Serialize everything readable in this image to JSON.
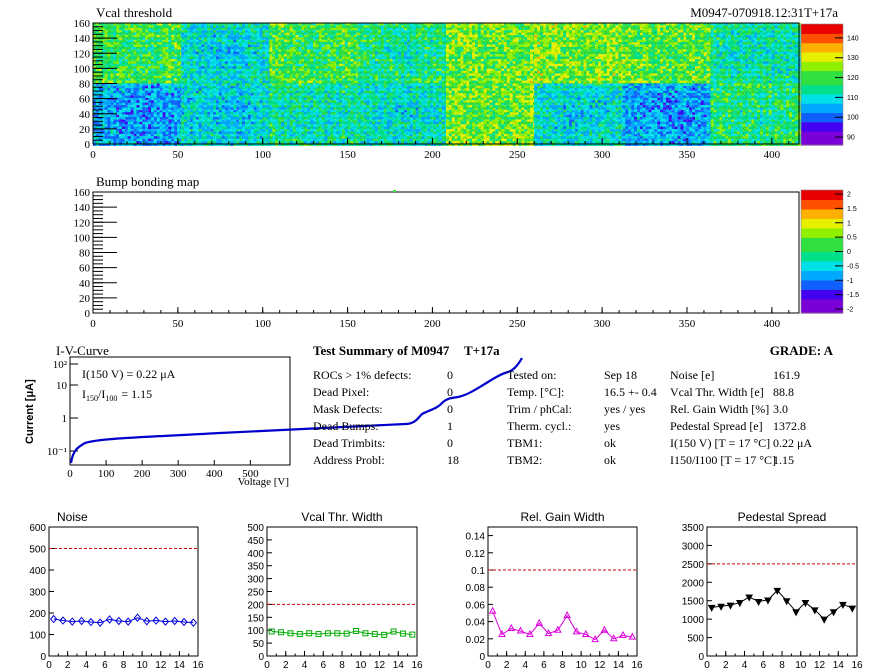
{
  "header": {
    "vcal_title": "Vcal threshold",
    "module_id": "M0947-070918.12:31T+17a",
    "bump_title": "Bump bonding map"
  },
  "colors": {
    "palette": [
      "#7a00d8",
      "#4400f0",
      "#1060ff",
      "#00a8ff",
      "#00e0e8",
      "#00e08a",
      "#30e040",
      "#90f000",
      "#e6f000",
      "#ffb000",
      "#ff5000",
      "#e80000"
    ]
  },
  "maps": {
    "x_ticks": [
      0,
      50,
      100,
      150,
      200,
      250,
      300,
      350,
      400
    ],
    "y_ticks": [
      0,
      20,
      40,
      60,
      80,
      100,
      120,
      140,
      160
    ],
    "vcal_scale": [
      90,
      100,
      110,
      120,
      130,
      140
    ],
    "bump_scale": [
      "2",
      "1.5",
      "1",
      "0.5",
      "0",
      "-0.5",
      "-1",
      "-1.5",
      "-2"
    ],
    "vcal_roc_levels": [
      [
        0.55,
        0.4,
        0.55,
        0.48,
        0.6,
        0.62,
        0.58,
        0.45
      ],
      [
        0.3,
        0.38,
        0.45,
        0.42,
        0.6,
        0.4,
        0.3,
        0.5
      ]
    ]
  },
  "iv": {
    "title": "I-V-Curve",
    "line1": "I(150 V) = 0.22 μA",
    "ratio_label": "I",
    "ratio_sub1": "150",
    "ratio_mid": "/I",
    "ratio_sub2": "100",
    "ratio_val": "=  1.15",
    "ylabel": "Current [μA]",
    "xlabel": "Voltage [V]",
    "x_ticks": [
      0,
      100,
      200,
      300,
      400,
      500
    ],
    "y_ticks": [
      "10⁻¹",
      "1",
      "10",
      "10²"
    ]
  },
  "summary": {
    "title": "Test Summary of M0947",
    "tag": "T+17a",
    "grade": "GRADE:  A",
    "col1": [
      {
        "label": "ROCs > 1% defects:",
        "value": "0"
      },
      {
        "label": "Dead Pixel:",
        "value": "0"
      },
      {
        "label": "Mask Defects:",
        "value": "0"
      },
      {
        "label": "Dead Bumps:",
        "value": "1"
      },
      {
        "label": "Dead Trimbits:",
        "value": "0"
      },
      {
        "label": "Address Probl:",
        "value": "18"
      }
    ],
    "col2": [
      {
        "label": "Tested on:",
        "value": "Sep 18"
      },
      {
        "label": "Temp. [°C]:",
        "value": "16.5 +- 0.4"
      },
      {
        "label": "Trim / phCal:",
        "value": "yes / yes"
      },
      {
        "label": "Therm. cycl.:",
        "value": "yes"
      },
      {
        "label": "TBM1:",
        "value": "ok"
      },
      {
        "label": "TBM2:",
        "value": "ok"
      }
    ],
    "col3": [
      {
        "label": "Noise [e]",
        "value": "161.9"
      },
      {
        "label": "Vcal Thr. Width [e]",
        "value": "88.8"
      },
      {
        "label": "Rel. Gain Width [%]",
        "value": "3.0"
      },
      {
        "label": "Pedestal Spread [e]",
        "value": "1372.8"
      },
      {
        "label": "I(150 V)  [T = 17 °C]",
        "value": "0.22 μA"
      },
      {
        "label": "I150/I100  [T = 17 °C]",
        "value": "1.15"
      }
    ]
  },
  "chart_data": [
    {
      "type": "line",
      "title": "Noise",
      "x": [
        0,
        1,
        2,
        3,
        4,
        5,
        6,
        7,
        8,
        9,
        10,
        11,
        12,
        13,
        14,
        15
      ],
      "values": [
        172,
        165,
        160,
        163,
        158,
        155,
        170,
        163,
        160,
        178,
        162,
        165,
        160,
        163,
        158,
        155
      ],
      "ylim": [
        0,
        600
      ],
      "y_ticks": [
        0,
        100,
        200,
        300,
        400,
        500,
        600
      ],
      "x_ticks": [
        0,
        2,
        4,
        6,
        8,
        10,
        12,
        14,
        16
      ],
      "threshold": 500,
      "color": "#0000dd",
      "marker": "diamond"
    },
    {
      "type": "line",
      "title": "Vcal Thr. Width",
      "x": [
        0,
        1,
        2,
        3,
        4,
        5,
        6,
        7,
        8,
        9,
        10,
        11,
        12,
        13,
        14,
        15
      ],
      "values": [
        95,
        92,
        88,
        85,
        88,
        85,
        88,
        88,
        87,
        97,
        88,
        85,
        82,
        95,
        87,
        83
      ],
      "ylim": [
        0,
        500
      ],
      "y_ticks": [
        0,
        50,
        100,
        150,
        200,
        250,
        300,
        350,
        400,
        450,
        500
      ],
      "x_ticks": [
        0,
        2,
        4,
        6,
        8,
        10,
        12,
        14,
        16
      ],
      "threshold": 200,
      "color": "#00aa00",
      "marker": "square"
    },
    {
      "type": "line",
      "title": "Rel. Gain Width",
      "x": [
        0,
        1,
        2,
        3,
        4,
        5,
        6,
        7,
        8,
        9,
        10,
        11,
        12,
        13,
        14,
        15
      ],
      "values": [
        0.052,
        0.025,
        0.032,
        0.029,
        0.025,
        0.038,
        0.026,
        0.03,
        0.047,
        0.028,
        0.025,
        0.019,
        0.03,
        0.02,
        0.024,
        0.022
      ],
      "ylim": [
        0,
        0.15
      ],
      "y_ticks": [
        0,
        0.02,
        0.04,
        0.06,
        0.08,
        0.1,
        0.12,
        0.14
      ],
      "x_ticks": [
        0,
        2,
        4,
        6,
        8,
        10,
        12,
        14,
        16
      ],
      "threshold": 0.1,
      "color": "#dd00dd",
      "marker": "triangle"
    },
    {
      "type": "line",
      "title": "Pedestal Spread",
      "x": [
        0,
        1,
        2,
        3,
        4,
        5,
        6,
        7,
        8,
        9,
        10,
        11,
        12,
        13,
        14,
        15
      ],
      "values": [
        1320,
        1350,
        1380,
        1450,
        1600,
        1480,
        1520,
        1780,
        1500,
        1200,
        1450,
        1250,
        1000,
        1200,
        1400,
        1300
      ],
      "ylim": [
        0,
        3500
      ],
      "y_ticks": [
        0,
        500,
        1000,
        1500,
        2000,
        2500,
        3000,
        3500
      ],
      "x_ticks": [
        0,
        2,
        4,
        6,
        8,
        10,
        12,
        14,
        16
      ],
      "threshold": 2500,
      "color": "#000000",
      "marker": "triangle-down"
    }
  ]
}
